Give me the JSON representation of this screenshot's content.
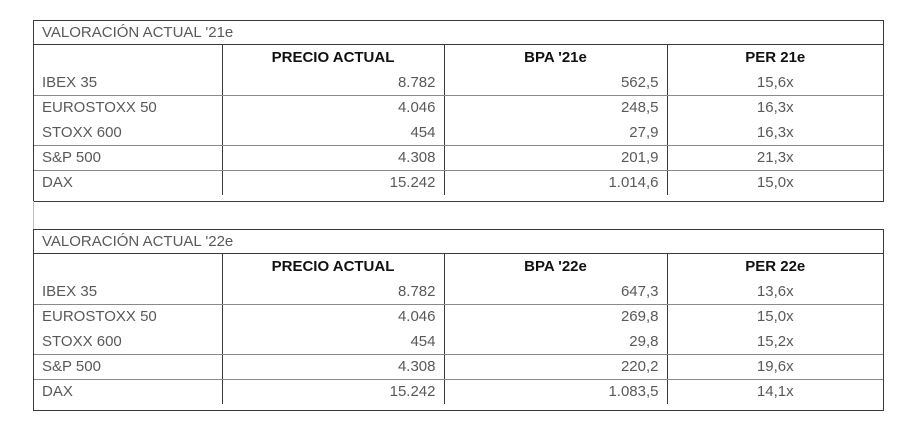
{
  "tables": [
    {
      "title": "VALORACIÓN ACTUAL '21e",
      "headers": [
        "",
        "PRECIO ACTUAL",
        "BPA '21e",
        "PER 21e"
      ],
      "rows": [
        {
          "name": "IBEX 35",
          "price": "8.782",
          "bpa": "562,5",
          "per": "15,6x"
        },
        {
          "name": "EUROSTOXX 50",
          "price": "4.046",
          "bpa": "248,5",
          "per": "16,3x"
        },
        {
          "name": "STOXX 600",
          "price": "454",
          "bpa": "27,9",
          "per": "16,3x"
        },
        {
          "name": "S&P 500",
          "price": "4.308",
          "bpa": "201,9",
          "per": "21,3x"
        },
        {
          "name": "DAX",
          "price": "15.242",
          "bpa": "1.014,6",
          "per": "15,0x"
        }
      ]
    },
    {
      "title": "VALORACIÓN ACTUAL '22e",
      "headers": [
        "",
        "PRECIO ACTUAL",
        "BPA '22e",
        "PER 22e"
      ],
      "rows": [
        {
          "name": "IBEX 35",
          "price": "8.782",
          "bpa": "647,3",
          "per": "13,6x"
        },
        {
          "name": "EUROSTOXX 50",
          "price": "4.046",
          "bpa": "269,8",
          "per": "15,0x"
        },
        {
          "name": "STOXX 600",
          "price": "454",
          "bpa": "29,8",
          "per": "15,2x"
        },
        {
          "name": "S&P 500",
          "price": "4.308",
          "bpa": "220,2",
          "per": "19,6x"
        },
        {
          "name": "DAX",
          "price": "15.242",
          "bpa": "1.083,5",
          "per": "14,1x"
        }
      ]
    }
  ]
}
